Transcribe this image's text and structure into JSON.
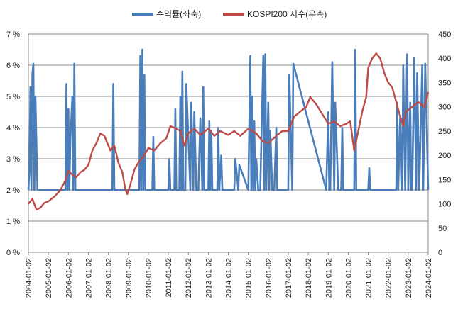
{
  "chart_data": {
    "type": "line",
    "title": "",
    "xlabel": "",
    "ylabel_left": "",
    "ylabel_right": "",
    "x_ticks": [
      "2004-01-02",
      "2005-01-02",
      "2006-01-02",
      "2007-01-02",
      "2008-01-02",
      "2009-01-02",
      "2010-01-02",
      "2011-01-02",
      "2012-01-02",
      "2013-01-02",
      "2014-01-02",
      "2015-01-02",
      "2016-01-02",
      "2017-01-02",
      "2018-01-02",
      "2019-01-02",
      "2020-01-02",
      "2021-01-02",
      "2022-01-02",
      "2023-01-02",
      "2024-01-02"
    ],
    "x_range": [
      2004.0,
      2024.0
    ],
    "y_left": {
      "min": 0,
      "max": 7,
      "step": 1,
      "tick_labels": [
        "0 %",
        "1 %",
        "2 %",
        "3 %",
        "4 %",
        "5 %",
        "6 %",
        "7 %"
      ]
    },
    "y_right": {
      "min": 0,
      "max": 450,
      "step": 50,
      "tick_labels": [
        "0",
        "50",
        "100",
        "150",
        "200",
        "250",
        "300",
        "350",
        "400",
        "450"
      ]
    },
    "grid": "horizontal",
    "legend_position": "top-center",
    "series": [
      {
        "name": "수익률(좌축)",
        "axis": "left",
        "color": "#4a7ebb",
        "baseline": 2.0,
        "x": [
          2004.0,
          2004.05,
          2004.1,
          2004.15,
          2004.2,
          2004.25,
          2004.3,
          2004.35,
          2004.45,
          2005.85,
          2005.9,
          2005.95,
          2006.0,
          2006.05,
          2006.1,
          2006.2,
          2006.25,
          2006.3,
          2006.35,
          2006.4,
          2006.55,
          2008.2,
          2008.25,
          2008.3,
          2008.4,
          2008.5,
          2009.55,
          2009.6,
          2009.65,
          2009.7,
          2009.75,
          2009.8,
          2009.85,
          2009.9,
          2010.2,
          2010.25,
          2010.3,
          2010.35,
          2011.0,
          2011.05,
          2011.1,
          2011.3,
          2011.35,
          2011.4,
          2011.55,
          2011.6,
          2011.65,
          2011.7,
          2011.75,
          2011.85,
          2011.9,
          2012.1,
          2012.15,
          2012.25,
          2012.3,
          2012.4,
          2012.5,
          2012.6,
          2012.7,
          2012.75,
          2012.8,
          2012.9,
          2013.0,
          2013.05,
          2013.1,
          2013.15,
          2013.2,
          2013.3,
          2013.45,
          2013.5,
          2013.55,
          2013.65,
          2013.7,
          2014.3,
          2014.35,
          2014.5,
          2014.55,
          2015.0,
          2015.1,
          2015.15,
          2015.2,
          2015.25,
          2015.3,
          2015.35,
          2015.4,
          2015.5,
          2015.6,
          2015.75,
          2015.8,
          2015.85,
          2015.9,
          2016.0,
          2016.05,
          2016.1,
          2016.2,
          2016.3,
          2016.4,
          2016.45,
          2016.5,
          2017.0,
          2017.05,
          2017.2,
          2017.25,
          2018.9,
          2019.0,
          2019.05,
          2019.1,
          2019.2,
          2019.3,
          2019.35,
          2019.5,
          2019.65,
          2019.7,
          2019.75,
          2019.9,
          2020.3,
          2020.35,
          2020.4,
          2020.45,
          2021.0,
          2021.05,
          2021.1,
          2022.3,
          2022.4,
          2022.45,
          2022.5,
          2022.6,
          2022.7,
          2022.75,
          2022.85,
          2022.95,
          2023.0,
          2023.1,
          2023.15,
          2023.2,
          2023.3,
          2023.4,
          2023.45,
          2023.55,
          2023.7,
          2023.75,
          2023.85,
          2024.0
        ],
        "y": [
          2.0,
          2.6,
          5.3,
          2.0,
          5.7,
          6.05,
          2.0,
          5.0,
          2.0,
          2.0,
          5.4,
          2.0,
          4.6,
          2.0,
          3.6,
          5.0,
          2.0,
          6.05,
          2.0,
          2.0,
          2.0,
          2.0,
          5.4,
          2.0,
          2.0,
          2.0,
          2.0,
          6.3,
          2.0,
          6.5,
          2.0,
          5.7,
          2.0,
          2.0,
          2.0,
          3.7,
          2.0,
          2.0,
          2.0,
          3.0,
          2.0,
          2.0,
          4.6,
          2.0,
          2.0,
          5.0,
          2.0,
          5.8,
          2.0,
          2.0,
          5.4,
          2.0,
          4.8,
          2.0,
          4.5,
          2.0,
          2.0,
          4.3,
          2.0,
          5.3,
          2.0,
          2.0,
          2.0,
          4.2,
          2.0,
          3.9,
          2.0,
          2.0,
          2.0,
          4.0,
          2.0,
          3.1,
          2.0,
          2.0,
          3.0,
          2.0,
          2.8,
          2.0,
          6.3,
          2.0,
          5.0,
          2.0,
          4.2,
          2.0,
          3.0,
          2.0,
          2.0,
          6.3,
          2.0,
          6.35,
          2.0,
          4.8,
          2.0,
          3.9,
          2.0,
          2.0,
          4.0,
          2.0,
          2.0,
          2.0,
          5.7,
          2.0,
          6.05,
          2.0,
          4.5,
          2.0,
          2.0,
          6.1,
          2.0,
          4.8,
          2.0,
          2.0,
          4.0,
          2.0,
          2.0,
          2.0,
          6.5,
          2.0,
          2.0,
          2.0,
          2.7,
          2.0,
          2.0,
          2.0,
          4.8,
          2.0,
          4.4,
          2.0,
          6.0,
          2.0,
          6.35,
          2.0,
          4.8,
          2.0,
          2.0,
          6.25,
          2.0,
          5.75,
          2.0,
          6.0,
          2.0,
          6.05,
          2.0
        ]
      },
      {
        "name": "KOSPI200 지수(우축)",
        "axis": "right",
        "color": "#be4b48",
        "x": [
          2004.0,
          2004.2,
          2004.4,
          2004.6,
          2004.8,
          2005.0,
          2005.3,
          2005.6,
          2005.85,
          2006.0,
          2006.2,
          2006.4,
          2006.6,
          2006.8,
          2007.0,
          2007.2,
          2007.4,
          2007.6,
          2007.8,
          2007.9,
          2008.1,
          2008.3,
          2008.5,
          2008.7,
          2008.85,
          2008.95,
          2009.1,
          2009.3,
          2009.5,
          2009.8,
          2010.0,
          2010.3,
          2010.6,
          2010.9,
          2011.1,
          2011.4,
          2011.6,
          2011.8,
          2012.0,
          2012.3,
          2012.6,
          2013.0,
          2013.3,
          2013.6,
          2014.0,
          2014.3,
          2014.6,
          2015.0,
          2015.4,
          2015.7,
          2016.0,
          2016.4,
          2016.7,
          2017.0,
          2017.3,
          2017.6,
          2017.9,
          2018.1,
          2018.4,
          2018.7,
          2019.0,
          2019.3,
          2019.6,
          2019.9,
          2020.1,
          2020.2,
          2020.3,
          2020.5,
          2020.7,
          2020.9,
          2021.0,
          2021.2,
          2021.4,
          2021.6,
          2021.8,
          2022.0,
          2022.2,
          2022.4,
          2022.6,
          2022.75,
          2022.9,
          2023.2,
          2023.5,
          2023.8,
          2024.0
        ],
        "y": [
          100,
          110,
          88,
          92,
          102,
          105,
          115,
          128,
          148,
          168,
          160,
          155,
          165,
          170,
          180,
          210,
          225,
          245,
          240,
          230,
          210,
          220,
          185,
          165,
          130,
          120,
          140,
          170,
          185,
          200,
          215,
          210,
          225,
          235,
          260,
          255,
          250,
          220,
          245,
          255,
          242,
          255,
          240,
          250,
          242,
          250,
          240,
          255,
          245,
          230,
          225,
          240,
          250,
          250,
          280,
          290,
          300,
          320,
          305,
          285,
          265,
          270,
          260,
          265,
          270,
          240,
          210,
          250,
          290,
          320,
          380,
          400,
          410,
          400,
          370,
          350,
          340,
          310,
          280,
          260,
          290,
          300,
          310,
          300,
          330
        ]
      }
    ]
  }
}
